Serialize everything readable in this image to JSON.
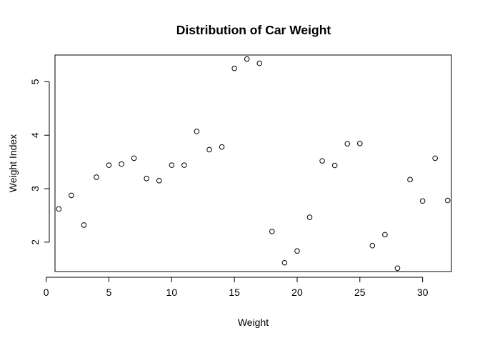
{
  "chart_data": {
    "type": "scatter",
    "title": "Distribution of Car Weight",
    "xlabel": "Weight",
    "ylabel": "Weight Index",
    "xlim": [
      0.7,
      32.3
    ],
    "ylim": [
      1.45,
      5.5
    ],
    "x_ticks": [
      0,
      5,
      10,
      15,
      20,
      25,
      30
    ],
    "y_ticks": [
      2,
      3,
      4,
      5
    ],
    "grid": false,
    "marker": "open-circle",
    "x": [
      1,
      2,
      3,
      4,
      5,
      6,
      7,
      8,
      9,
      10,
      11,
      12,
      13,
      14,
      15,
      16,
      17,
      18,
      19,
      20,
      21,
      22,
      23,
      24,
      25,
      26,
      27,
      28,
      29,
      30,
      31,
      32
    ],
    "y": [
      2.62,
      2.875,
      2.32,
      3.215,
      3.44,
      3.46,
      3.57,
      3.19,
      3.15,
      3.44,
      3.44,
      4.07,
      3.73,
      3.78,
      5.25,
      5.424,
      5.345,
      2.2,
      1.615,
      1.835,
      2.465,
      3.52,
      3.435,
      3.84,
      3.845,
      1.935,
      2.14,
      1.513,
      3.17,
      2.77,
      3.57,
      2.78
    ]
  }
}
